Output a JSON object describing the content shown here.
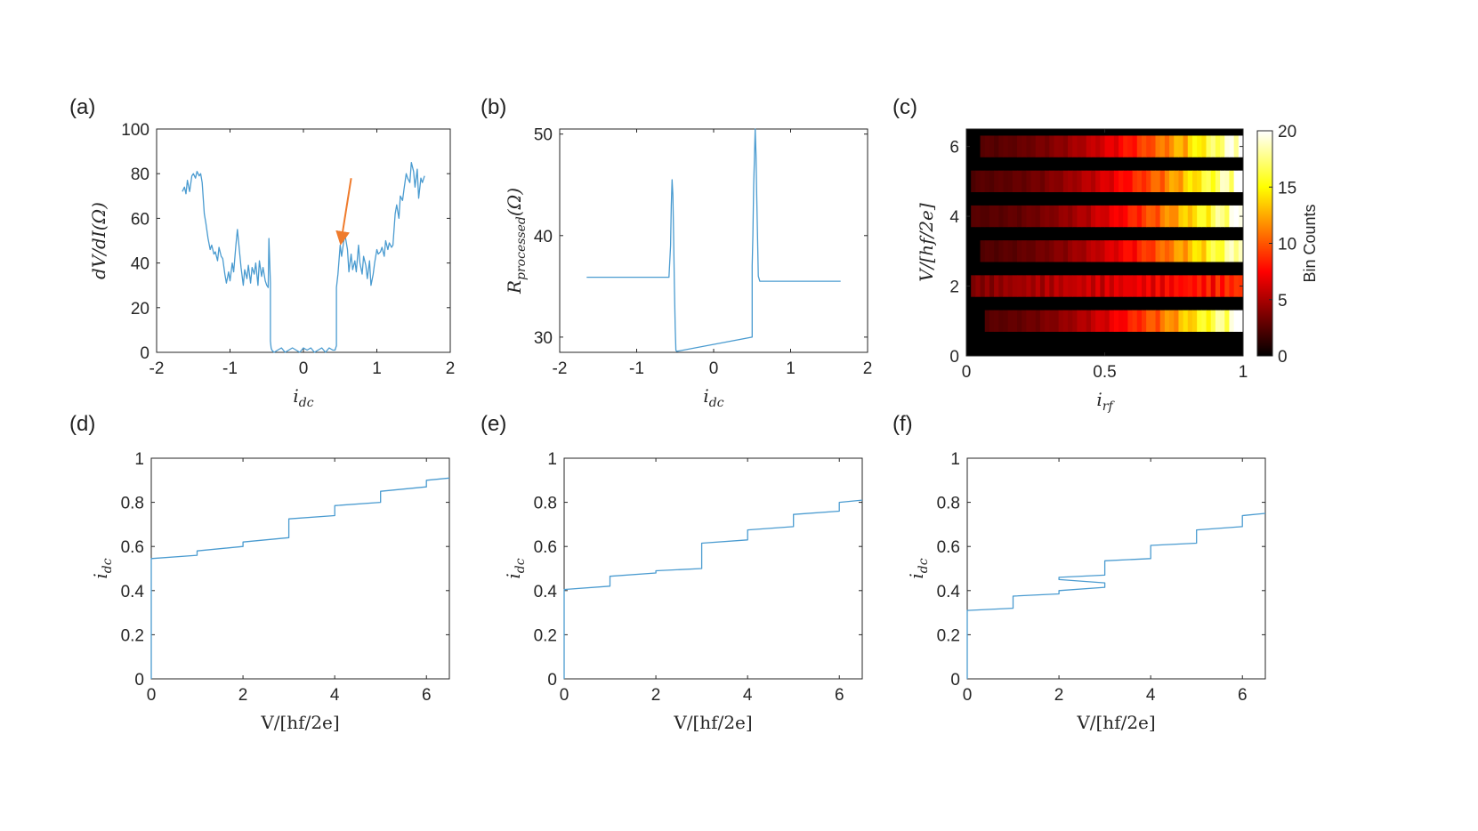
{
  "accent_color": "#4a9bd0",
  "arrow_color": "#ef7b2c",
  "chart_data": [
    {
      "id": "a",
      "panel_label": "(a)",
      "type": "line",
      "xlabel_main": "i",
      "xlabel_sub": "dc",
      "ylabel_pre": "dV/dI",
      "ylabel_unit": "(Ω)",
      "xlim": [
        -2,
        2
      ],
      "ylim": [
        0,
        100
      ],
      "xticks": [
        -2,
        -1,
        0,
        1,
        2
      ],
      "xtick_labels": [
        "-2",
        "-1",
        "0",
        "1",
        "2"
      ],
      "yticks": [
        0,
        20,
        40,
        60,
        80,
        100
      ],
      "ytick_labels": [
        "0",
        "20",
        "40",
        "60",
        "80",
        "100"
      ],
      "annotation": {
        "type": "arrow",
        "from": [
          0.65,
          78
        ],
        "to": [
          0.52,
          51
        ]
      },
      "series": [
        {
          "x": [
            -1.65,
            -1.62,
            -1.6,
            -1.58,
            -1.55,
            -1.52,
            -1.5,
            -1.47,
            -1.45,
            -1.42,
            -1.4,
            -1.38,
            -1.35,
            -1.33,
            -1.3,
            -1.27,
            -1.25,
            -1.22,
            -1.2,
            -1.17,
            -1.15,
            -1.12,
            -1.1,
            -1.07,
            -1.05,
            -1.02,
            -1.0,
            -0.97,
            -0.95,
            -0.92,
            -0.9,
            -0.87,
            -0.85,
            -0.82,
            -0.8,
            -0.77,
            -0.75,
            -0.72,
            -0.7,
            -0.67,
            -0.65,
            -0.62,
            -0.6,
            -0.57,
            -0.55,
            -0.52,
            -0.5,
            -0.48,
            -0.47,
            -0.45,
            -0.45,
            -0.44,
            -0.43,
            -0.4,
            -0.35,
            -0.3,
            -0.25,
            -0.2,
            -0.15,
            -0.1,
            -0.05,
            0.0,
            0.05,
            0.1,
            0.15,
            0.2,
            0.25,
            0.3,
            0.35,
            0.4,
            0.43,
            0.45,
            0.45,
            0.47,
            0.5,
            0.52,
            0.55,
            0.57,
            0.6,
            0.62,
            0.65,
            0.67,
            0.7,
            0.72,
            0.75,
            0.77,
            0.8,
            0.82,
            0.85,
            0.87,
            0.9,
            0.92,
            0.95,
            0.97,
            1.0,
            1.02,
            1.05,
            1.07,
            1.1,
            1.12,
            1.15,
            1.17,
            1.2,
            1.22,
            1.25,
            1.27,
            1.3,
            1.32,
            1.35,
            1.37,
            1.4,
            1.42,
            1.45,
            1.47,
            1.5,
            1.52,
            1.55,
            1.57,
            1.6,
            1.62,
            1.65
          ],
          "y": [
            72,
            74,
            71,
            77,
            72,
            79,
            80,
            78,
            81,
            79,
            80,
            76,
            62,
            58,
            51,
            46,
            48,
            44,
            45,
            41,
            47,
            43,
            42,
            35,
            31,
            36,
            32,
            40,
            36,
            48,
            55,
            45,
            38,
            30,
            37,
            33,
            39,
            31,
            38,
            35,
            40,
            30,
            41,
            34,
            38,
            32,
            30,
            29,
            51,
            31,
            5,
            2,
            1,
            0,
            1,
            2,
            0,
            1,
            2,
            1,
            0,
            2,
            1,
            2,
            0,
            1,
            2,
            0,
            2,
            1,
            1,
            3,
            29,
            35,
            48,
            43,
            50,
            52,
            46,
            36,
            44,
            37,
            41,
            36,
            48,
            40,
            35,
            43,
            39,
            33,
            41,
            30,
            35,
            40,
            46,
            44,
            45,
            47,
            43,
            50,
            46,
            49,
            47,
            48,
            62,
            66,
            60,
            70,
            68,
            73,
            80,
            78,
            76,
            85,
            81,
            74,
            82,
            69,
            78,
            76,
            79
          ]
        }
      ]
    },
    {
      "id": "b",
      "panel_label": "(b)",
      "type": "line",
      "xlabel_main": "i",
      "xlabel_sub": "dc",
      "ylabel_pre": "R",
      "ylabel_sub": "processed",
      "ylabel_unit": "(Ω)",
      "xlim": [
        -2,
        2
      ],
      "ylim": [
        28.5,
        50.5
      ],
      "xticks": [
        -2,
        -1,
        0,
        1,
        2
      ],
      "xtick_labels": [
        "-2",
        "-1",
        "0",
        "1",
        "2"
      ],
      "yticks": [
        30,
        40,
        50
      ],
      "ytick_labels": [
        "30",
        "40",
        "50"
      ],
      "series": [
        {
          "x": [
            -1.65,
            -0.58,
            -0.56,
            -0.55,
            -0.54,
            -0.53,
            -0.52,
            -0.51,
            -0.5,
            -0.49,
            -0.48,
            0.5,
            0.5,
            0.51,
            0.52,
            0.53,
            0.54,
            0.55,
            0.56,
            0.57,
            0.58,
            0.6,
            1.65
          ],
          "y": [
            35.9,
            35.9,
            39,
            43,
            45.5,
            44,
            40,
            35,
            31,
            28.7,
            28.6,
            30,
            37,
            40,
            45,
            47.5,
            50.5,
            48,
            44,
            40,
            36,
            35.5,
            35.5
          ]
        }
      ]
    },
    {
      "id": "c",
      "panel_label": "(c)",
      "type": "heatmap",
      "xlabel_main": "i",
      "xlabel_sub": "rf",
      "ylabel_pre": "V/[hf/2e]",
      "xlim": [
        0,
        1
      ],
      "ylim": [
        0,
        6.5
      ],
      "xticks": [
        0,
        0.5,
        1
      ],
      "xtick_labels": [
        "0",
        "0.5",
        "1"
      ],
      "yticks": [
        0,
        2,
        4,
        6
      ],
      "ytick_labels": [
        "0",
        "2",
        "4",
        "6"
      ],
      "colorbar": {
        "label": "Bin Counts",
        "min": 0,
        "max": 20,
        "ticks": [
          0,
          5,
          10,
          15,
          20
        ],
        "tick_labels": [
          "0",
          "5",
          "10",
          "15",
          "20"
        ]
      },
      "rows": [
        {
          "v": 1,
          "start": 0.06,
          "max": 20,
          "profile": "rise"
        },
        {
          "v": 2,
          "start": 0.02,
          "max": 10,
          "profile": "flat"
        },
        {
          "v": 3,
          "start": 0.05,
          "max": 19,
          "profile": "rise"
        },
        {
          "v": 4,
          "start": 0.02,
          "max": 20,
          "profile": "rise"
        },
        {
          "v": 5,
          "start": 0.02,
          "max": 20,
          "profile": "rise"
        },
        {
          "v": 6,
          "start": 0.05,
          "max": 20,
          "profile": "rise"
        }
      ]
    },
    {
      "id": "d",
      "panel_label": "(d)",
      "type": "line",
      "xlabel_main": "V/[hf/2e]",
      "ylabel_main": "i",
      "ylabel_sub": "dc",
      "xlim": [
        0,
        6.5
      ],
      "ylim": [
        0,
        1
      ],
      "xticks": [
        0,
        2,
        4,
        6
      ],
      "xtick_labels": [
        "0",
        "2",
        "4",
        "6"
      ],
      "yticks": [
        0,
        0.2,
        0.4,
        0.6,
        0.8,
        1
      ],
      "ytick_labels": [
        "0",
        "0.2",
        "0.4",
        "0.6",
        "0.8",
        "1"
      ],
      "series": [
        {
          "x": [
            0,
            0,
            1,
            1,
            2,
            2,
            3,
            3,
            4,
            4,
            5,
            5,
            6,
            6,
            6.5
          ],
          "y": [
            0,
            0.545,
            0.56,
            0.58,
            0.6,
            0.62,
            0.64,
            0.725,
            0.74,
            0.785,
            0.8,
            0.85,
            0.87,
            0.9,
            0.91
          ]
        }
      ]
    },
    {
      "id": "e",
      "panel_label": "(e)",
      "type": "line",
      "xlabel_main": "V/[hf/2e]",
      "ylabel_main": "i",
      "ylabel_sub": "dc",
      "xlim": [
        0,
        6.5
      ],
      "ylim": [
        0,
        1
      ],
      "xticks": [
        0,
        2,
        4,
        6
      ],
      "xtick_labels": [
        "0",
        "2",
        "4",
        "6"
      ],
      "yticks": [
        0,
        0.2,
        0.4,
        0.6,
        0.8,
        1
      ],
      "ytick_labels": [
        "0",
        "0.2",
        "0.4",
        "0.6",
        "0.8",
        "1"
      ],
      "series": [
        {
          "x": [
            0,
            0,
            1,
            1,
            2,
            2,
            3,
            3,
            4,
            4,
            5,
            5,
            6,
            6,
            6.5
          ],
          "y": [
            0,
            0.405,
            0.42,
            0.465,
            0.48,
            0.49,
            0.5,
            0.615,
            0.63,
            0.675,
            0.69,
            0.745,
            0.76,
            0.8,
            0.81
          ]
        }
      ]
    },
    {
      "id": "f",
      "panel_label": "(f)",
      "type": "line",
      "xlabel_main": "V/[hf/2e]",
      "ylabel_main": "i",
      "ylabel_sub": "dc",
      "xlim": [
        0,
        6.5
      ],
      "ylim": [
        0,
        1
      ],
      "xticks": [
        0,
        2,
        4,
        6
      ],
      "xtick_labels": [
        "0",
        "2",
        "4",
        "6"
      ],
      "yticks": [
        0,
        0.2,
        0.4,
        0.6,
        0.8,
        1
      ],
      "ytick_labels": [
        "0",
        "0.2",
        "0.4",
        "0.6",
        "0.8",
        "1"
      ],
      "series": [
        {
          "x": [
            0,
            0,
            1,
            1,
            2,
            2,
            3,
            3,
            2,
            2,
            3,
            3,
            4,
            4,
            5,
            5,
            6,
            6,
            6.5
          ],
          "y": [
            0,
            0.31,
            0.32,
            0.375,
            0.385,
            0.4,
            0.415,
            0.435,
            0.45,
            0.46,
            0.47,
            0.535,
            0.545,
            0.605,
            0.615,
            0.675,
            0.69,
            0.74,
            0.75
          ]
        }
      ]
    }
  ]
}
